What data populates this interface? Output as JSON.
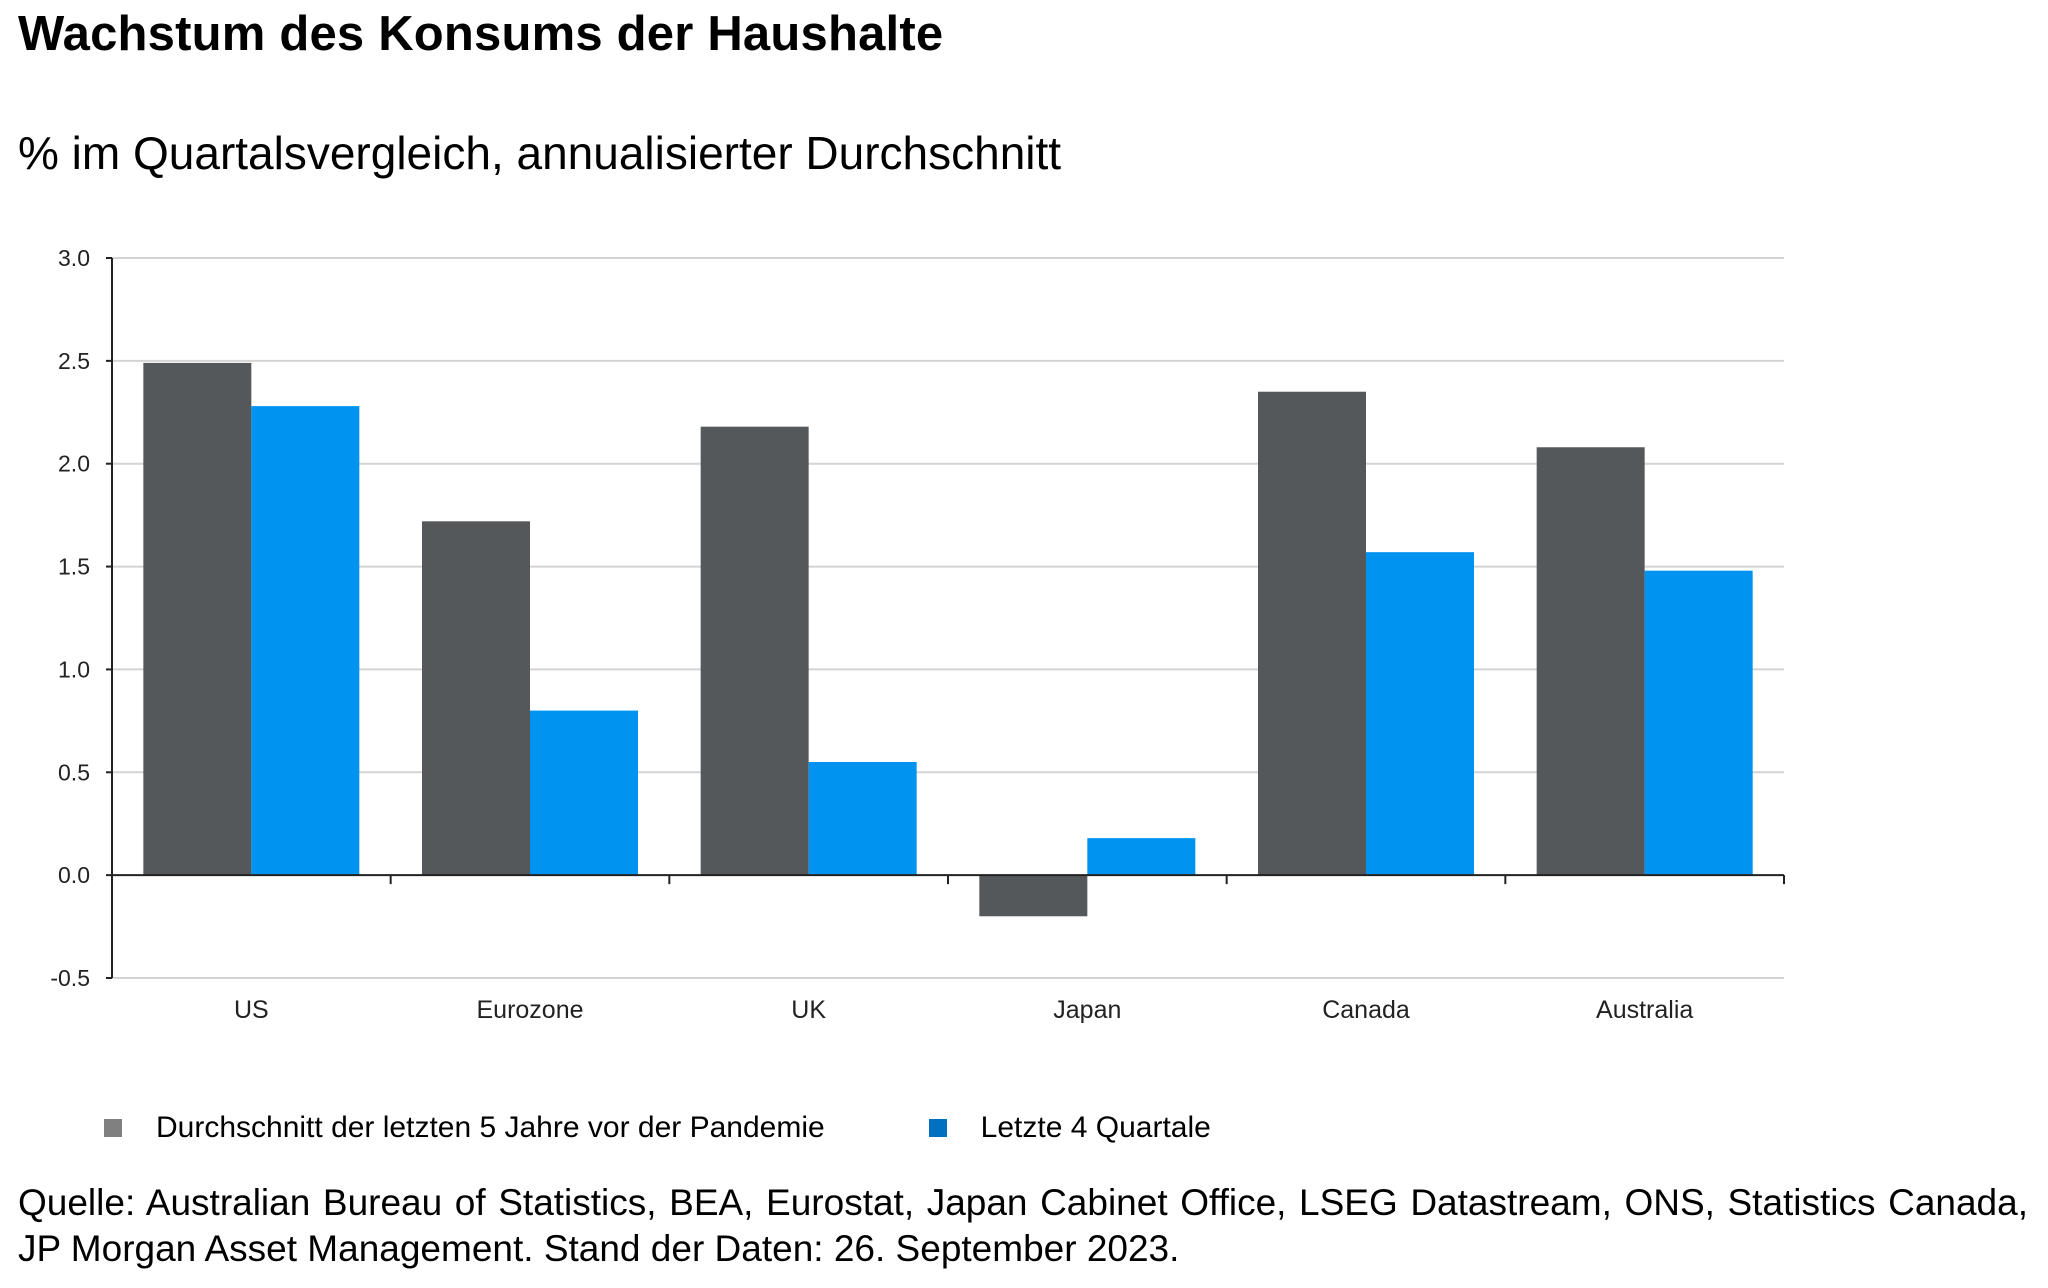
{
  "title": "Wachstum des Konsums der Haushalte",
  "subtitle": "% im Quartalsvergleich, annualisierter Durchschnitt",
  "chart_data": {
    "type": "bar",
    "categories": [
      "US",
      "Eurozone",
      "UK",
      "Japan",
      "Canada",
      "Australia"
    ],
    "series": [
      {
        "name": "Durchschnitt der letzten 5 Jahre vor der Pandemie",
        "color": "#54585a",
        "values": [
          2.49,
          1.72,
          2.18,
          -0.2,
          2.35,
          2.08
        ]
      },
      {
        "name": "Letzte 4 Quartale",
        "color": "#0094f0",
        "values": [
          2.28,
          0.8,
          0.55,
          0.18,
          1.57,
          1.48
        ]
      }
    ],
    "ylim": [
      -0.5,
      3.0
    ],
    "yticks": [
      "3.0",
      "2.5",
      "2.0",
      "1.5",
      "1.0",
      "0.5",
      "0.0",
      "-0.5"
    ],
    "ytick_values": [
      3.0,
      2.5,
      2.0,
      1.5,
      1.0,
      0.5,
      0.0,
      -0.5
    ],
    "grid": true,
    "legend_position": "bottom-left"
  },
  "legend_colors": {
    "series1": "#808080",
    "series2": "#0070c0"
  },
  "source": "Quelle: Australian Bureau of Statistics, BEA, Eurostat, Japan Cabinet Office, LSEG Datastream, ONS, Statistics Canada, JP Morgan Asset Management. Stand der Daten: 26. September 2023."
}
